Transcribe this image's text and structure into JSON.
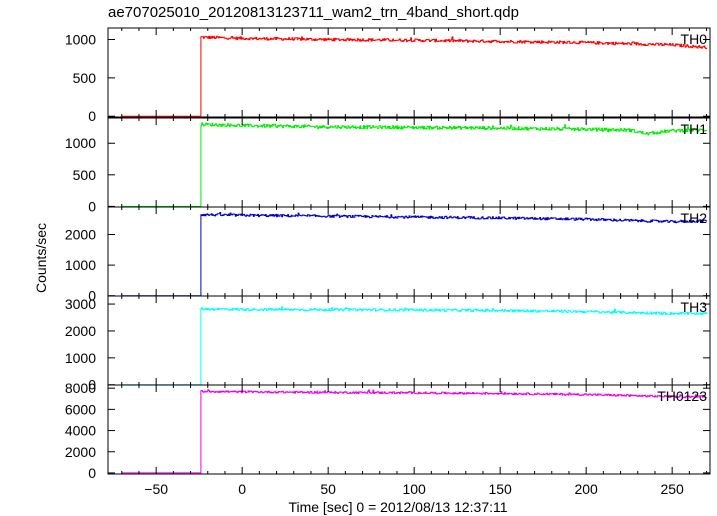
{
  "chart_data": {
    "type": "line",
    "title": "ae707025010_20120813123711_wam2_trn_4band_short.qdp",
    "xlabel": "Time [sec] 0 = 2012/08/13 12:37:11",
    "ylabel": "Counts/sec",
    "xlim": [
      -78,
      272
    ],
    "x_ticks": [
      -50,
      0,
      50,
      100,
      150,
      200,
      250
    ],
    "x_tick_labels": [
      "−50",
      "0",
      "50",
      "100",
      "150",
      "200",
      "250"
    ],
    "onset_time": -24,
    "grid": false,
    "legend": "none",
    "panels": [
      {
        "name": "TH0",
        "color": "#ff0000",
        "ylim": [
          -10,
          1150
        ],
        "y_ticks": [
          0,
          500,
          1000
        ],
        "y_tick_labels": [
          "0",
          "500",
          "1000"
        ],
        "x_start": -70,
        "x_end": 270,
        "x": [
          -24,
          0,
          50,
          100,
          150,
          200,
          250,
          268
        ],
        "y": [
          1030,
          1015,
          1000,
          990,
          975,
          960,
          930,
          900
        ],
        "pre_onset_value": 0,
        "noise": 18
      },
      {
        "name": "TH1",
        "color": "#00ee00",
        "ylim": [
          -10,
          1400
        ],
        "y_ticks": [
          0,
          500,
          1000
        ],
        "y_tick_labels": [
          "0",
          "500",
          "1000"
        ],
        "x_start": -70,
        "x_end": 270,
        "x": [
          -24,
          0,
          50,
          100,
          150,
          200,
          225,
          235,
          250,
          268
        ],
        "y": [
          1300,
          1280,
          1260,
          1250,
          1240,
          1220,
          1210,
          1150,
          1200,
          1210
        ],
        "pre_onset_value": 0,
        "noise": 25
      },
      {
        "name": "TH2",
        "color": "#0000cc",
        "ylim": [
          -10,
          2900
        ],
        "y_ticks": [
          0,
          1000,
          2000
        ],
        "y_tick_labels": [
          "0",
          "1000",
          "2000"
        ],
        "x_start": -70,
        "x_end": 270,
        "x": [
          -24,
          0,
          50,
          100,
          150,
          200,
          250,
          268
        ],
        "y": [
          2650,
          2630,
          2600,
          2570,
          2540,
          2500,
          2420,
          2450
        ],
        "pre_onset_value": 0,
        "noise": 40
      },
      {
        "name": "TH3",
        "color": "#00ffff",
        "ylim": [
          -10,
          3300
        ],
        "y_ticks": [
          0,
          1000,
          2000,
          3000
        ],
        "y_tick_labels": [
          "0",
          "1000",
          "2000",
          "3000"
        ],
        "x_start": -70,
        "x_end": 270,
        "x": [
          -24,
          0,
          50,
          100,
          150,
          200,
          250,
          268
        ],
        "y": [
          2820,
          2800,
          2790,
          2780,
          2760,
          2720,
          2650,
          2650
        ],
        "pre_onset_value": 0,
        "noise": 45
      },
      {
        "name": "TH0123",
        "color": "#ee00ee",
        "ylim": [
          -100,
          8300
        ],
        "y_ticks": [
          0,
          2000,
          4000,
          6000,
          8000
        ],
        "y_tick_labels": [
          "0",
          "2000",
          "4000",
          "6000",
          "8000"
        ],
        "x_start": -70,
        "x_end": 270,
        "x": [
          -24,
          0,
          50,
          100,
          150,
          200,
          250,
          268
        ],
        "y": [
          7700,
          7650,
          7600,
          7560,
          7500,
          7400,
          7200,
          7200
        ],
        "pre_onset_value": 0,
        "noise": 90
      }
    ]
  }
}
